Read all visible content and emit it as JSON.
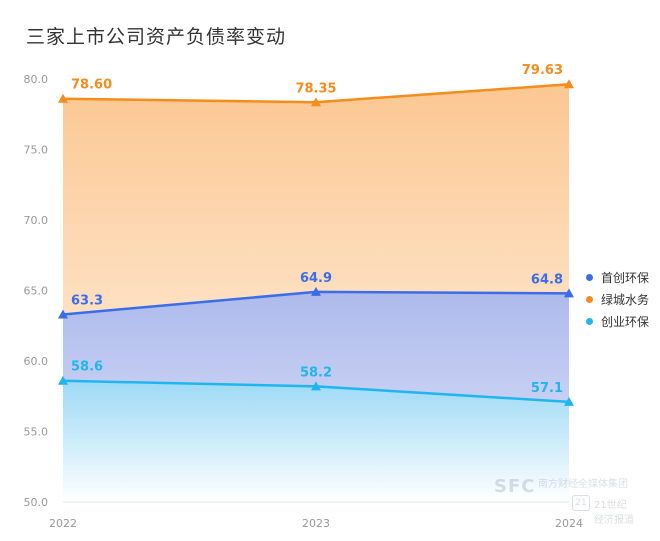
{
  "chart_data": {
    "type": "area",
    "title": "三家上市公司资产负债率变动",
    "categories": [
      "2022",
      "2023",
      "2024"
    ],
    "ylim": [
      50,
      80
    ],
    "yticks": [
      "50.0",
      "55.0",
      "60.0",
      "65.0",
      "70.0",
      "75.0",
      "80.0"
    ],
    "legend_position": "right",
    "series": [
      {
        "name": "首创环保",
        "values": [
          63.3,
          64.9,
          64.8
        ],
        "labels": [
          "63.3",
          "64.9",
          "64.8"
        ],
        "color": "#3a6ee8"
      },
      {
        "name": "绿城水务",
        "values": [
          78.6,
          78.35,
          79.63
        ],
        "labels": [
          "78.60",
          "78.35",
          "79.63"
        ],
        "color": "#f58c1b"
      },
      {
        "name": "创业环保",
        "values": [
          58.6,
          58.2,
          57.1
        ],
        "labels": [
          "58.6",
          "58.2",
          "57.1"
        ],
        "color": "#1fb6f0"
      }
    ]
  },
  "watermark": {
    "logo": "SFC",
    "line1": "南方财经全媒体集团",
    "line2": "21世纪经济报道",
    "badge": "21"
  }
}
